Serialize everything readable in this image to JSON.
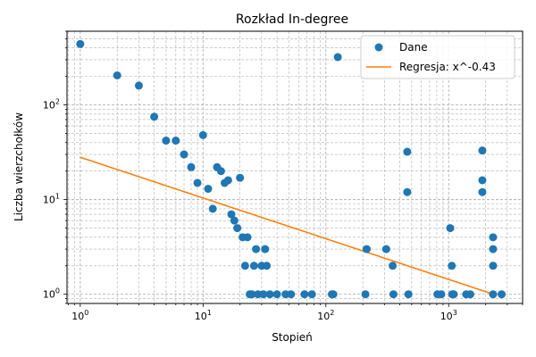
{
  "chart_data": {
    "type": "scatter",
    "title": "Rozkład In-degree",
    "xlabel": "Stopień",
    "ylabel": "Liczba wierzchołków",
    "xscale": "log",
    "yscale": "log",
    "xlim": [
      0.78,
      4000
    ],
    "ylim": [
      0.8,
      600
    ],
    "grid": true,
    "legend_position": "top-right",
    "x_tick_labels": [
      {
        "value": 1,
        "base": "10",
        "exp": "0"
      },
      {
        "value": 10,
        "base": "10",
        "exp": "1"
      },
      {
        "value": 100,
        "base": "10",
        "exp": "2"
      },
      {
        "value": 1000,
        "base": "10",
        "exp": "3"
      }
    ],
    "y_tick_labels": [
      {
        "value": 1,
        "base": "10",
        "exp": "0"
      },
      {
        "value": 10,
        "base": "10",
        "exp": "1"
      },
      {
        "value": 100,
        "base": "10",
        "exp": "2"
      }
    ],
    "series": [
      {
        "name": "Dane",
        "kind": "scatter",
        "color": "#1f77b4",
        "points": [
          [
            1,
            440
          ],
          [
            2,
            205
          ],
          [
            3,
            160
          ],
          [
            4,
            75
          ],
          [
            5,
            42
          ],
          [
            6,
            42
          ],
          [
            7,
            30
          ],
          [
            8,
            22
          ],
          [
            9,
            15
          ],
          [
            10,
            48
          ],
          [
            11,
            13
          ],
          [
            12,
            8
          ],
          [
            13,
            22
          ],
          [
            14,
            20
          ],
          [
            15,
            15
          ],
          [
            16,
            16
          ],
          [
            17,
            7
          ],
          [
            18,
            6
          ],
          [
            19,
            5
          ],
          [
            20,
            17
          ],
          [
            21,
            4
          ],
          [
            22,
            2
          ],
          [
            23,
            4
          ],
          [
            24,
            1
          ],
          [
            25,
            1
          ],
          [
            26,
            2
          ],
          [
            27,
            3
          ],
          [
            28,
            1
          ],
          [
            30,
            2
          ],
          [
            31,
            1
          ],
          [
            32,
            3
          ],
          [
            33,
            2
          ],
          [
            35,
            1
          ],
          [
            40,
            1
          ],
          [
            47,
            1
          ],
          [
            52,
            1
          ],
          [
            67,
            1
          ],
          [
            77,
            1
          ],
          [
            112,
            1
          ],
          [
            115,
            1
          ],
          [
            125,
            320
          ],
          [
            210,
            1
          ],
          [
            215,
            3
          ],
          [
            310,
            3
          ],
          [
            350,
            2
          ],
          [
            355,
            1
          ],
          [
            460,
            32
          ],
          [
            460,
            12
          ],
          [
            470,
            1
          ],
          [
            810,
            1
          ],
          [
            870,
            1
          ],
          [
            1030,
            5
          ],
          [
            1060,
            2
          ],
          [
            1070,
            1
          ],
          [
            1100,
            1
          ],
          [
            1390,
            1
          ],
          [
            1500,
            1
          ],
          [
            1880,
            33
          ],
          [
            1880,
            16
          ],
          [
            1880,
            12
          ],
          [
            2300,
            4
          ],
          [
            2300,
            3
          ],
          [
            2300,
            2
          ],
          [
            2300,
            1
          ],
          [
            2700,
            1
          ]
        ]
      },
      {
        "name": "Regresja: x^-0.43",
        "kind": "line",
        "color": "#ff7f0e",
        "exponent": -0.43,
        "coefficient": 28,
        "x_range": [
          1,
          2300
        ]
      }
    ]
  }
}
